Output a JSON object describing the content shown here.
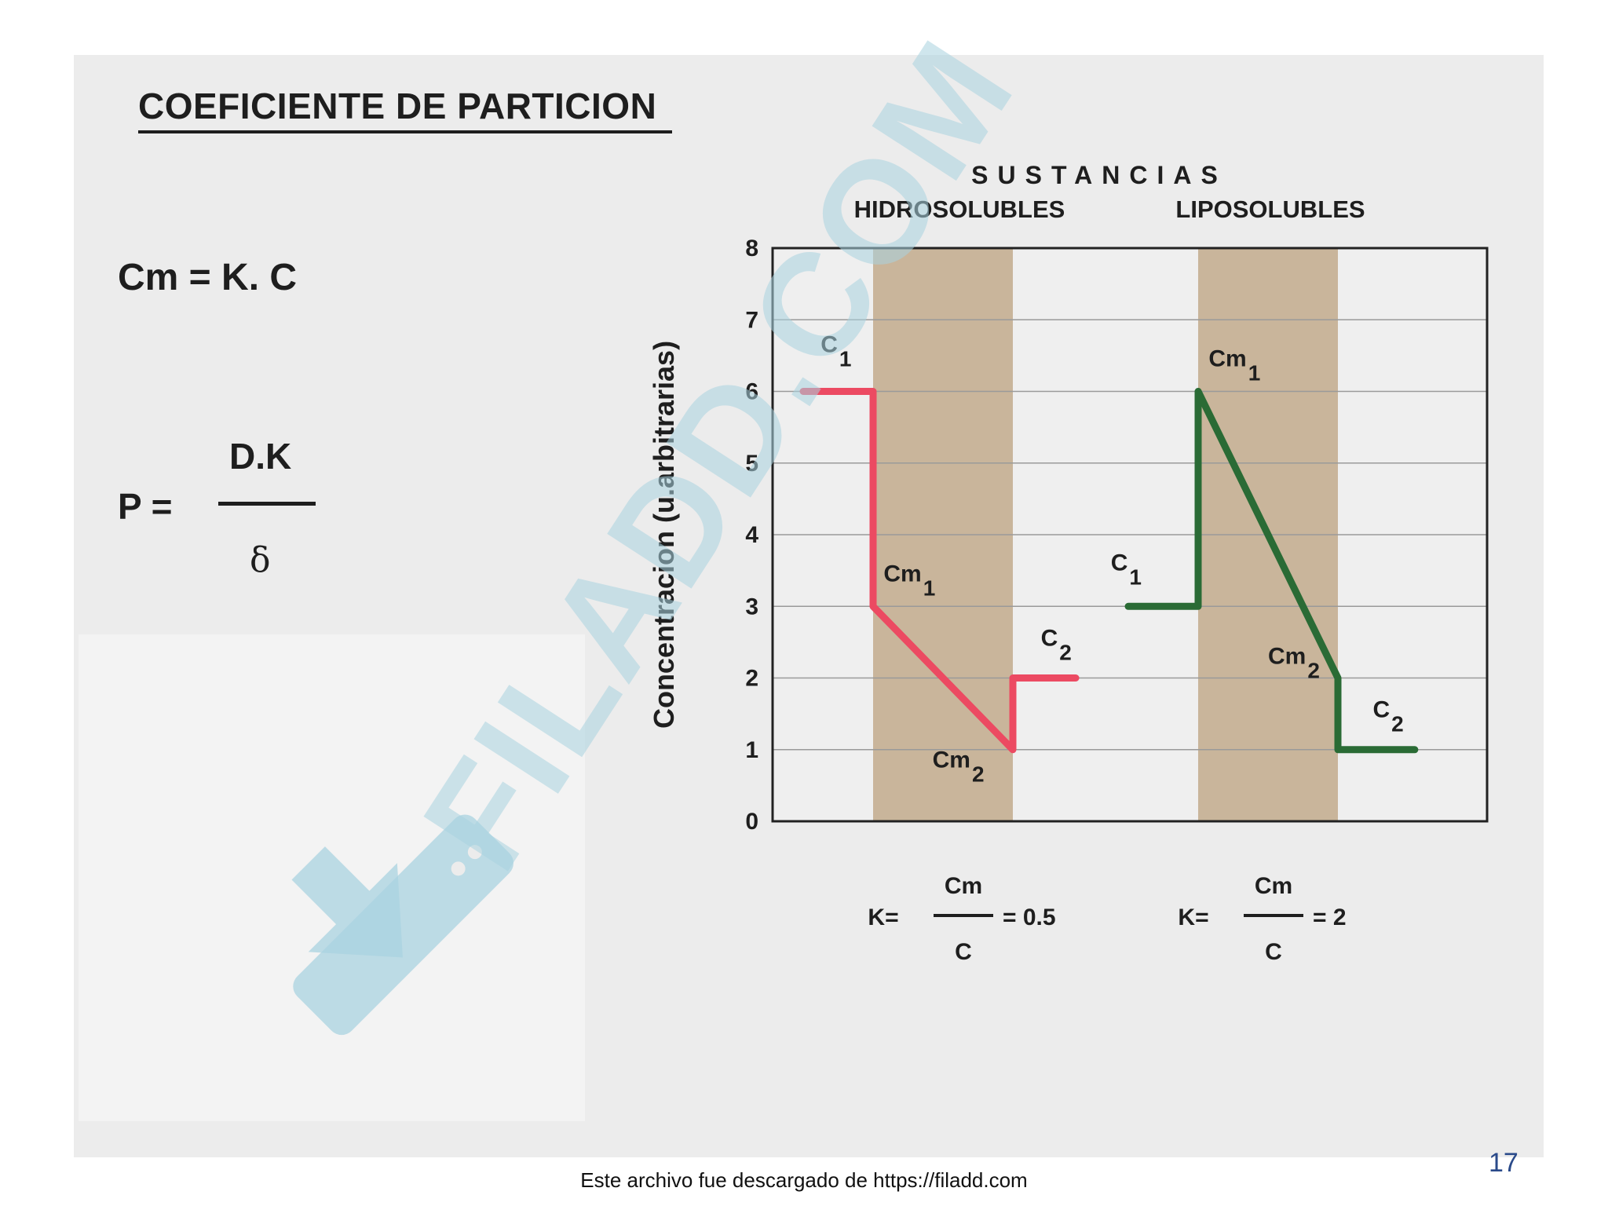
{
  "slide": {
    "title": "COEFICIENTE DE PARTICION",
    "formula_1": "Cm = K. C",
    "formula_2": {
      "lhs": "P  =",
      "numerator": "D.K",
      "denominator": "δ"
    },
    "page_number": "17"
  },
  "watermark": {
    "text": "FILADD.COM",
    "color": "#a9d3e0",
    "icon": "download-arrow-icon"
  },
  "footer": {
    "text": "Este archivo fue descargado de https://filadd.com"
  },
  "chart_data": {
    "type": "line",
    "title": "SUSTANCIAS",
    "ylabel": "Concentracion (u.arbitrarias)",
    "xlabel": "",
    "ylim": [
      0,
      8
    ],
    "yticks": [
      0,
      1,
      2,
      3,
      4,
      5,
      6,
      7,
      8
    ],
    "grid": true,
    "membrane_color": "#c9b59b",
    "panels": [
      {
        "name": "HIDROSOLUBLES",
        "color": "#ec4a62",
        "points": [
          {
            "x": 0.0,
            "y": 6.0
          },
          {
            "x": 1.0,
            "y": 6.0
          },
          {
            "x": 1.0,
            "y": 3.0
          },
          {
            "x": 3.0,
            "y": 1.0
          },
          {
            "x": 3.0,
            "y": 2.0
          },
          {
            "x": 3.9,
            "y": 2.0
          }
        ],
        "labels": [
          {
            "main": "C",
            "sub": "1",
            "x": 0.25,
            "y": 6.55
          },
          {
            "main": "Cm",
            "sub": "1",
            "x": 1.15,
            "y": 3.35
          },
          {
            "main": "C",
            "sub": "2",
            "x": 3.4,
            "y": 2.45
          },
          {
            "main": "Cm",
            "sub": "2",
            "x": 1.85,
            "y": 0.75
          }
        ],
        "k_formula": {
          "lhs": "K=",
          "numerator": "Cm",
          "denominator": "C",
          "result": "= 0.5"
        }
      },
      {
        "name": "LIPOSOLUBLES",
        "color": "#2a6b35",
        "points": [
          {
            "x": 0.0,
            "y": 3.0
          },
          {
            "x": 1.0,
            "y": 3.0
          },
          {
            "x": 1.0,
            "y": 6.0
          },
          {
            "x": 3.0,
            "y": 2.0
          },
          {
            "x": 3.0,
            "y": 1.0
          },
          {
            "x": 4.1,
            "y": 1.0
          }
        ],
        "labels": [
          {
            "main": "Cm",
            "sub": "1",
            "x": 1.15,
            "y": 6.35
          },
          {
            "main": "C",
            "sub": "1",
            "x": -0.25,
            "y": 3.5
          },
          {
            "main": "Cm",
            "sub": "2",
            "x": 2.0,
            "y": 2.2
          },
          {
            "main": "C",
            "sub": "2",
            "x": 3.5,
            "y": 1.45
          }
        ],
        "k_formula": {
          "lhs": "K=",
          "numerator": "Cm",
          "denominator": "C",
          "result": "= 2"
        }
      }
    ]
  }
}
